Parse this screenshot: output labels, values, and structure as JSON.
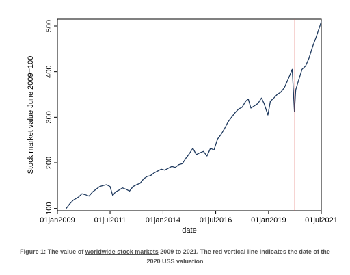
{
  "chart_data": {
    "type": "line",
    "xlabel": "date",
    "ylabel": "Stock market value June 2009=100",
    "x_tick_labels": [
      "01jan2009",
      "01jul2011",
      "01jan2014",
      "01jul2016",
      "01jan2019",
      "01jul2021"
    ],
    "y_tick_labels": [
      "100",
      "200",
      "300",
      "400",
      "500"
    ],
    "ylim": [
      95,
      515
    ],
    "xlim": [
      "2009-01-01",
      "2021-07-01"
    ],
    "grid": false,
    "series": [
      {
        "color": "#1f3a5f",
        "x": [
          "2009-06-01",
          "2009-08-01",
          "2009-10-01",
          "2010-01-01",
          "2010-03-01",
          "2010-05-01",
          "2010-07-01",
          "2010-09-01",
          "2010-11-01",
          "2011-01-01",
          "2011-03-01",
          "2011-05-01",
          "2011-07-01",
          "2011-08-15",
          "2011-10-01",
          "2011-12-01",
          "2012-02-01",
          "2012-04-01",
          "2012-06-01",
          "2012-08-01",
          "2012-10-01",
          "2012-12-01",
          "2013-02-01",
          "2013-04-01",
          "2013-06-01",
          "2013-08-01",
          "2013-10-01",
          "2013-12-01",
          "2014-02-01",
          "2014-04-01",
          "2014-06-01",
          "2014-08-01",
          "2014-10-01",
          "2014-12-01",
          "2015-02-01",
          "2015-04-01",
          "2015-06-01",
          "2015-08-01",
          "2015-10-01",
          "2015-12-01",
          "2016-02-01",
          "2016-04-01",
          "2016-06-01",
          "2016-08-01",
          "2016-10-01",
          "2016-12-01",
          "2017-02-01",
          "2017-04-01",
          "2017-06-01",
          "2017-08-01",
          "2017-10-01",
          "2017-12-01",
          "2018-01-15",
          "2018-03-01",
          "2018-05-01",
          "2018-07-01",
          "2018-09-01",
          "2018-10-15",
          "2018-12-20",
          "2019-02-01",
          "2019-04-01",
          "2019-06-01",
          "2019-08-01",
          "2019-10-01",
          "2019-12-01",
          "2020-02-15",
          "2020-03-23",
          "2020-04-15",
          "2020-06-01",
          "2020-08-01",
          "2020-10-01",
          "2020-12-01",
          "2021-02-01",
          "2021-04-01",
          "2021-06-01",
          "2021-07-01"
        ],
        "values": [
          100,
          110,
          118,
          125,
          132,
          130,
          127,
          136,
          142,
          148,
          150,
          152,
          148,
          128,
          136,
          140,
          145,
          142,
          138,
          148,
          152,
          155,
          165,
          170,
          172,
          178,
          182,
          186,
          184,
          188,
          192,
          190,
          196,
          198,
          210,
          220,
          232,
          218,
          222,
          225,
          215,
          232,
          228,
          252,
          262,
          275,
          290,
          300,
          310,
          318,
          322,
          335,
          340,
          320,
          325,
          330,
          342,
          330,
          305,
          335,
          342,
          350,
          355,
          365,
          382,
          405,
          312,
          360,
          380,
          405,
          412,
          430,
          455,
          475,
          498,
          510
        ]
      }
    ],
    "annotations": [
      {
        "type": "vertical-line",
        "x": "2020-03-31",
        "color": "#d9534f"
      }
    ]
  },
  "caption": {
    "prefix": "Figure 1: The value of ",
    "link_text": "worldwide stock markets",
    "suffix": " 2009 to 2021. The red vertical line indicates the date of the 2020 USS valuation"
  }
}
